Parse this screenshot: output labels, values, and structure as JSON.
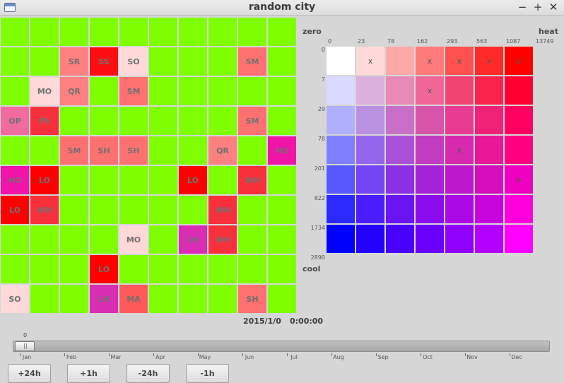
{
  "window": {
    "title": "random city"
  },
  "window_controls": {
    "minimize": "−",
    "maximize": "+",
    "close": "✕"
  },
  "grid": {
    "rows": [
      [
        [
          "",
          "#7ffe00"
        ],
        [
          "",
          "#7ffe00"
        ],
        [
          "",
          "#7ffe00"
        ],
        [
          "",
          "#7ffe00"
        ],
        [
          "",
          "#7ffe00"
        ],
        [
          "",
          "#7ffe00"
        ],
        [
          "",
          "#7ffe00"
        ],
        [
          "",
          "#7ffe00"
        ],
        [
          "",
          "#7ffe00"
        ],
        [
          "",
          "#7ffe00"
        ]
      ],
      [
        [
          "",
          "#7ffe00"
        ],
        [
          "",
          "#7ffe00"
        ],
        [
          "SR",
          "#ff8080"
        ],
        [
          "SS",
          "#fe0e12"
        ],
        [
          "SO",
          "#ffd9d9"
        ],
        [
          "",
          "#7ffe00"
        ],
        [
          "",
          "#7ffe00"
        ],
        [
          "",
          "#7ffe00"
        ],
        [
          "SM",
          "#ff7070"
        ],
        [
          "",
          "#7ffe00"
        ]
      ],
      [
        [
          "",
          "#7ffe00"
        ],
        [
          "MO",
          "#ffd9d9"
        ],
        [
          "QR",
          "#ff8080"
        ],
        [
          "",
          "#7ffe00"
        ],
        [
          "SM",
          "#ff7070"
        ],
        [
          "",
          "#7ffe00"
        ],
        [
          "",
          "#7ffe00"
        ],
        [
          "",
          "#7ffe00"
        ],
        [
          "",
          "#7ffe00"
        ],
        [
          "",
          "#7ffe00"
        ]
      ],
      [
        [
          "OP",
          "#f06c9e"
        ],
        [
          "PS",
          "#f8303c"
        ],
        [
          "",
          "#7ffe00"
        ],
        [
          "",
          "#7ffe00"
        ],
        [
          "",
          "#7ffe00"
        ],
        [
          "",
          "#7ffe00"
        ],
        [
          "",
          "#7ffe00"
        ],
        [
          "",
          "#7ffe00"
        ],
        [
          "SM",
          "#ff7070"
        ],
        [
          "",
          "#7ffe00"
        ]
      ],
      [
        [
          "",
          "#7ffe00"
        ],
        [
          "",
          "#7ffe00"
        ],
        [
          "SM",
          "#ff7070"
        ],
        [
          "SH",
          "#ff7070"
        ],
        [
          "SH",
          "#ff7070"
        ],
        [
          "",
          "#7ffe00"
        ],
        [
          "",
          "#7ffe00"
        ],
        [
          "QR",
          "#ff8080"
        ],
        [
          "",
          "#7ffe00"
        ],
        [
          "HO",
          "#f014a8"
        ]
      ],
      [
        [
          "HO",
          "#f014a8"
        ],
        [
          "LO",
          "#ff0000"
        ],
        [
          "",
          "#7ffe00"
        ],
        [
          "",
          "#7ffe00"
        ],
        [
          "",
          "#7ffe00"
        ],
        [
          "",
          "#7ffe00"
        ],
        [
          "LO",
          "#ff0000"
        ],
        [
          "",
          "#7ffe00"
        ],
        [
          "WH",
          "#f8303c"
        ],
        [
          "",
          "#7ffe00"
        ]
      ],
      [
        [
          "LO",
          "#ff0000"
        ],
        [
          "WH",
          "#f8303c"
        ],
        [
          "",
          "#7ffe00"
        ],
        [
          "",
          "#7ffe00"
        ],
        [
          "",
          "#7ffe00"
        ],
        [
          "",
          "#7ffe00"
        ],
        [
          "",
          "#7ffe00"
        ],
        [
          "WH",
          "#f8303c"
        ],
        [
          "",
          "#7ffe00"
        ],
        [
          "",
          "#7ffe00"
        ]
      ],
      [
        [
          "",
          "#7ffe00"
        ],
        [
          "",
          "#7ffe00"
        ],
        [
          "",
          "#7ffe00"
        ],
        [
          "",
          "#7ffe00"
        ],
        [
          "MO",
          "#ffd9d9"
        ],
        [
          "",
          "#7ffe00"
        ],
        [
          "LH",
          "#d92eb4"
        ],
        [
          "WH",
          "#f8303c"
        ],
        [
          "",
          "#7ffe00"
        ],
        [
          "",
          "#7ffe00"
        ]
      ],
      [
        [
          "",
          "#7ffe00"
        ],
        [
          "",
          "#7ffe00"
        ],
        [
          "",
          "#7ffe00"
        ],
        [
          "LO",
          "#ff0000"
        ],
        [
          "",
          "#7ffe00"
        ],
        [
          "",
          "#7ffe00"
        ],
        [
          "",
          "#7ffe00"
        ],
        [
          "",
          "#7ffe00"
        ],
        [
          "",
          "#7ffe00"
        ],
        [
          "",
          "#7ffe00"
        ]
      ],
      [
        [
          "SO",
          "#ffd9d9"
        ],
        [
          "",
          "#7ffe00"
        ],
        [
          "",
          "#7ffe00"
        ],
        [
          "LH",
          "#d92eb4"
        ],
        [
          "MA",
          "#ff5a5a"
        ],
        [
          "",
          "#7ffe00"
        ],
        [
          "",
          "#7ffe00"
        ],
        [
          "",
          "#7ffe00"
        ],
        [
          "SH",
          "#ff7070"
        ],
        [
          "",
          "#7ffe00"
        ]
      ]
    ]
  },
  "legend": {
    "zero_label": "zero",
    "heat_label": "heat",
    "cool_label": "cool",
    "heat_ticks": [
      "0",
      "23",
      "78",
      "162",
      "293",
      "563",
      "1087",
      "13749"
    ],
    "cool_ticks": [
      "0",
      "7",
      "29",
      "78",
      "201",
      "822",
      "1734",
      "2890"
    ],
    "cells": [
      [
        [
          "",
          "#ffffff"
        ],
        [
          "x",
          "#ffd9d9"
        ],
        [
          "",
          "#ffa8a8"
        ],
        [
          "x",
          "#ff7b7b"
        ],
        [
          "x",
          "#ff5050"
        ],
        [
          "x",
          "#ff2a2a"
        ],
        [
          "x",
          "#ff0000"
        ]
      ],
      [
        [
          "",
          "#d9d9ff"
        ],
        [
          "",
          "#dcb0dc"
        ],
        [
          "",
          "#e88ab8"
        ],
        [
          "x",
          "#f06696"
        ],
        [
          "",
          "#f24472"
        ],
        [
          "",
          "#f8244c"
        ],
        [
          "",
          "#ff0030"
        ]
      ],
      [
        [
          "",
          "#b0b0ff"
        ],
        [
          "",
          "#b890e0"
        ],
        [
          "",
          "#c870c8"
        ],
        [
          "",
          "#d854a8"
        ],
        [
          "",
          "#e83a90"
        ],
        [
          "",
          "#f02278"
        ],
        [
          "",
          "#ff0060"
        ]
      ],
      [
        [
          "",
          "#8080ff"
        ],
        [
          "",
          "#9466ec"
        ],
        [
          "",
          "#aa50d8"
        ],
        [
          "",
          "#c23cc2"
        ],
        [
          "x",
          "#d82aae"
        ],
        [
          "",
          "#e81898"
        ],
        [
          "",
          "#ff0080"
        ]
      ],
      [
        [
          "",
          "#5858ff"
        ],
        [
          "",
          "#7244f4"
        ],
        [
          "",
          "#8c30e4"
        ],
        [
          "",
          "#a422d8"
        ],
        [
          "",
          "#bc18cc"
        ],
        [
          "",
          "#d40ebc"
        ],
        [
          "x",
          "#ee00c0"
        ]
      ],
      [
        [
          "",
          "#2a2aff"
        ],
        [
          "",
          "#4a1cff"
        ],
        [
          "",
          "#6a14f4"
        ],
        [
          "",
          "#8a0cec"
        ],
        [
          "",
          "#aa08e4"
        ],
        [
          "",
          "#c804dc"
        ],
        [
          "",
          "#ff00dd"
        ]
      ],
      [
        [
          "",
          "#0000ff"
        ],
        [
          "",
          "#2400ff"
        ],
        [
          "",
          "#4800ff"
        ],
        [
          "",
          "#6c00ff"
        ],
        [
          "",
          "#9000ff"
        ],
        [
          "",
          "#b400ff"
        ],
        [
          "",
          "#ff00ff"
        ]
      ]
    ]
  },
  "status": {
    "date": "2015/1/0",
    "time": "0:00:00"
  },
  "slider": {
    "value": "0",
    "fraction": 0,
    "months": [
      "Jan",
      "Feb",
      "Mar",
      "Apr",
      "May",
      "Jun",
      "Jul",
      "Aug",
      "Sep",
      "Oct",
      "Nov",
      "Dec"
    ]
  },
  "buttons": {
    "plus24": "+24h",
    "plus1": "+1h",
    "minus24": "-24h",
    "minus1": "-1h"
  }
}
